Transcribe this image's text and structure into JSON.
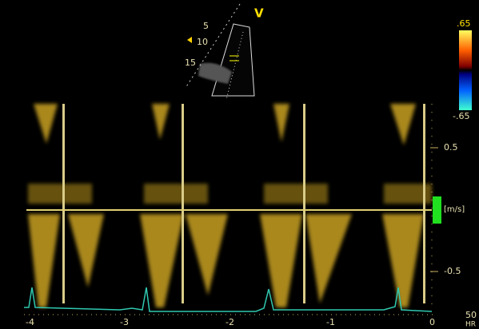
{
  "probe_marker": "V",
  "depth_labels": [
    "5",
    "10",
    "15"
  ],
  "color_scale": {
    "max": ".65",
    "min": "-.65"
  },
  "velocity_axis": {
    "unit": "[m/s]",
    "ticks": [
      "0.5",
      "-0.5"
    ]
  },
  "time_axis": {
    "ticks": [
      "-4",
      "-3",
      "-2",
      "-1",
      "0"
    ]
  },
  "heart_rate": {
    "value": "50",
    "label": "HR"
  }
}
